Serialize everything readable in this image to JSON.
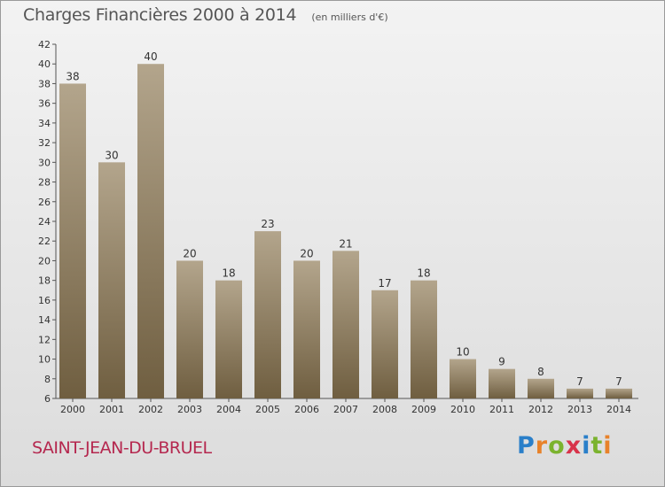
{
  "header": {
    "title": "Charges Financières 2000 à 2014",
    "unit": "(en milliers d'€)"
  },
  "footer": {
    "commune": "SAINT-JEAN-DU-BRUEL",
    "brand": {
      "letters": [
        "P",
        "r",
        "o",
        "x",
        "i",
        "t",
        "i"
      ],
      "colors": [
        "#2a7fc9",
        "#e8822a",
        "#7bb32e",
        "#d8334a",
        "#2a7fc9",
        "#7bb32e",
        "#e8822a"
      ]
    }
  },
  "colors": {
    "bar_top": "#b3a58c",
    "bar_bottom": "#6f5e40",
    "commune": "#b5284f"
  },
  "chart_data": {
    "type": "bar",
    "title": "Charges Financières 2000 à 2014",
    "ylabel": "(en milliers d'€)",
    "xlabel": "",
    "categories": [
      "2000",
      "2001",
      "2002",
      "2003",
      "2004",
      "2005",
      "2006",
      "2007",
      "2008",
      "2009",
      "2010",
      "2011",
      "2012",
      "2013",
      "2014"
    ],
    "values": [
      38,
      30,
      40,
      20,
      18,
      23,
      20,
      21,
      17,
      18,
      10,
      9,
      8,
      7,
      7
    ],
    "ylim": [
      6,
      42
    ],
    "yticks": [
      6,
      8,
      10,
      12,
      14,
      16,
      18,
      20,
      22,
      24,
      26,
      28,
      30,
      32,
      34,
      36,
      38,
      40,
      42
    ],
    "grid": false
  }
}
